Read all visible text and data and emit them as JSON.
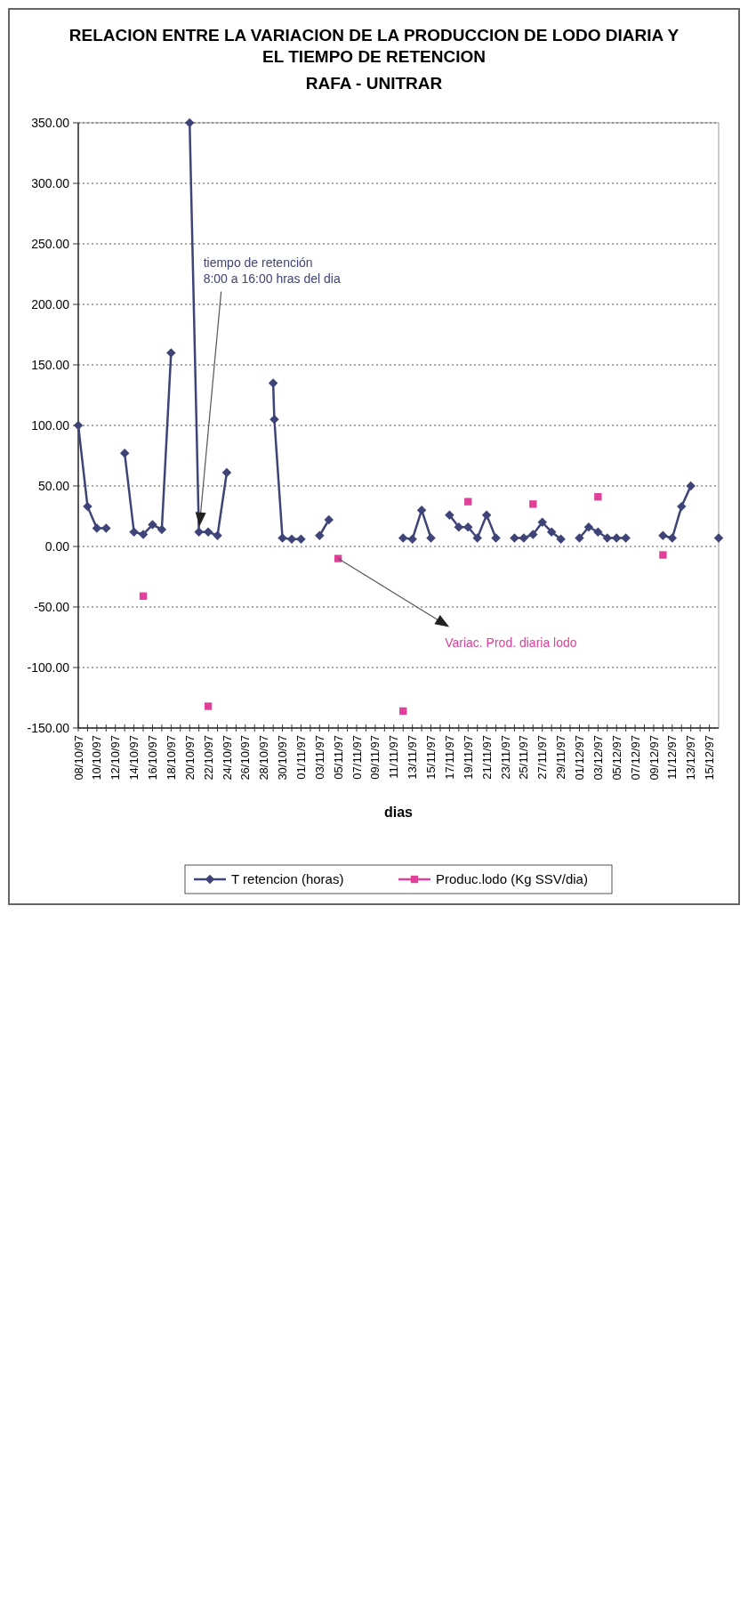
{
  "chart_data": {
    "type": "line",
    "title": "RELACION ENTRE LA VARIACION DE LA PRODUCCION DE LODO DIARIA Y EL TIEMPO DE RETENCION",
    "subtitle": "RAFA - UNITRAR",
    "xlabel": "dias",
    "xlim": [
      "1997-10-08",
      "1997-12-16"
    ],
    "xticks": [
      {
        "value": "1997-10-08",
        "label": "08/10/97"
      },
      {
        "value": "1997-10-09",
        "label": null
      },
      {
        "value": "1997-10-10",
        "label": "10/10/97"
      },
      {
        "value": "1997-10-11",
        "label": null
      },
      {
        "value": "1997-10-12",
        "label": "12/10/97"
      },
      {
        "value": "1997-10-13",
        "label": null
      },
      {
        "value": "1997-10-14",
        "label": "14/10/97"
      },
      {
        "value": "1997-10-15",
        "label": null
      },
      {
        "value": "1997-10-16",
        "label": "16/10/97"
      },
      {
        "value": "1997-10-17",
        "label": null
      },
      {
        "value": "1997-10-18",
        "label": "18/10/97"
      },
      {
        "value": "1997-10-19",
        "label": null
      },
      {
        "value": "1997-10-20",
        "label": "20/10/97"
      },
      {
        "value": "1997-10-21",
        "label": null
      },
      {
        "value": "1997-10-22",
        "label": "22/10/97"
      },
      {
        "value": "1997-10-23",
        "label": null
      },
      {
        "value": "1997-10-24",
        "label": "24/10/97"
      },
      {
        "value": "1997-10-25",
        "label": null
      },
      {
        "value": "1997-10-26",
        "label": "26/10/97"
      },
      {
        "value": "1997-10-27",
        "label": null
      },
      {
        "value": "1997-10-28",
        "label": "28/10/97"
      },
      {
        "value": "1997-10-29",
        "label": null
      },
      {
        "value": "1997-10-30",
        "label": "30/10/97"
      },
      {
        "value": "1997-10-31",
        "label": null
      },
      {
        "value": "1997-11-01",
        "label": "01/11/97"
      },
      {
        "value": "1997-11-02",
        "label": null
      },
      {
        "value": "1997-11-03",
        "label": "03/11/97"
      },
      {
        "value": "1997-11-04",
        "label": null
      },
      {
        "value": "1997-11-05",
        "label": "05/11/97"
      },
      {
        "value": "1997-11-06",
        "label": null
      },
      {
        "value": "1997-11-07",
        "label": "07/11/97"
      },
      {
        "value": "1997-11-08",
        "label": null
      },
      {
        "value": "1997-11-09",
        "label": "09/11/97"
      },
      {
        "value": "1997-11-10",
        "label": null
      },
      {
        "value": "1997-11-11",
        "label": "11/11/97"
      },
      {
        "value": "1997-11-12",
        "label": null
      },
      {
        "value": "1997-11-13",
        "label": "13/11/97"
      },
      {
        "value": "1997-11-14",
        "label": null
      },
      {
        "value": "1997-11-15",
        "label": "15/11/97"
      },
      {
        "value": "1997-11-16",
        "label": null
      },
      {
        "value": "1997-11-17",
        "label": "17/11/97"
      },
      {
        "value": "1997-11-18",
        "label": null
      },
      {
        "value": "1997-11-19",
        "label": "19/11/97"
      },
      {
        "value": "1997-11-20",
        "label": null
      },
      {
        "value": "1997-11-21",
        "label": "21/11/97"
      },
      {
        "value": "1997-11-22",
        "label": null
      },
      {
        "value": "1997-11-23",
        "label": "23/11/97"
      },
      {
        "value": "1997-11-24",
        "label": null
      },
      {
        "value": "1997-11-25",
        "label": "25/11/97"
      },
      {
        "value": "1997-11-26",
        "label": null
      },
      {
        "value": "1997-11-27",
        "label": "27/11/97"
      },
      {
        "value": "1997-11-28",
        "label": null
      },
      {
        "value": "1997-11-29",
        "label": "29/11/97"
      },
      {
        "value": "1997-11-30",
        "label": null
      },
      {
        "value": "1997-12-01",
        "label": "01/12/97"
      },
      {
        "value": "1997-12-02",
        "label": null
      },
      {
        "value": "1997-12-03",
        "label": "03/12/97"
      },
      {
        "value": "1997-12-04",
        "label": null
      },
      {
        "value": "1997-12-05",
        "label": "05/12/97"
      },
      {
        "value": "1997-12-06",
        "label": null
      },
      {
        "value": "1997-12-07",
        "label": "07/12/97"
      },
      {
        "value": "1997-12-08",
        "label": null
      },
      {
        "value": "1997-12-09",
        "label": "09/12/97"
      },
      {
        "value": "1997-12-10",
        "label": null
      },
      {
        "value": "1997-12-11",
        "label": "11/12/97"
      },
      {
        "value": "1997-12-12",
        "label": null
      },
      {
        "value": "1997-12-13",
        "label": "13/12/97"
      },
      {
        "value": "1997-12-14",
        "label": null
      },
      {
        "value": "1997-12-15",
        "label": "15/12/97"
      }
    ],
    "ylim": [
      -150,
      350
    ],
    "yticks": [
      {
        "value": -150,
        "label": "-150.00"
      },
      {
        "value": -100,
        "label": "-100.00"
      },
      {
        "value": -50,
        "label": "-50.00"
      },
      {
        "value": 0,
        "label": "0.00"
      },
      {
        "value": 50,
        "label": "50.00"
      },
      {
        "value": 100,
        "label": "100.00"
      },
      {
        "value": 150,
        "label": "150.00"
      },
      {
        "value": 200,
        "label": "200.00"
      },
      {
        "value": 250,
        "label": "250.00"
      },
      {
        "value": 300,
        "label": "300.00"
      },
      {
        "value": 350,
        "label": "350.00"
      }
    ],
    "grid": "y",
    "legend": "bottom",
    "line_style": "solid",
    "series": [
      {
        "name": "T retencion (horas)",
        "color": "#3f4478",
        "marker": "diamond",
        "x": [
          "1997-10-08",
          "1997-10-09",
          "1997-10-10",
          "1997-10-11",
          "1997-10-12",
          "1997-10-13",
          "1997-10-14",
          "1997-10-15",
          "1997-10-16",
          "1997-10-17",
          "1997-10-18",
          "1997-10-19",
          "1997-10-20",
          "1997-10-21",
          "1997-10-22",
          "1997-10-23",
          "1997-10-24",
          "1997-10-25",
          "1997-10-29",
          "1997-10-29T03:00",
          "1997-10-30",
          "1997-10-31",
          "1997-11-01",
          "1997-11-02",
          "1997-11-03",
          "1997-11-04",
          "1997-11-05",
          "1997-11-12",
          "1997-11-13",
          "1997-11-14",
          "1997-11-15",
          "1997-11-16",
          "1997-11-17",
          "1997-11-18",
          "1997-11-19",
          "1997-11-20",
          "1997-11-21",
          "1997-11-22",
          "1997-11-23",
          "1997-11-24",
          "1997-11-25",
          "1997-11-26",
          "1997-11-27",
          "1997-11-28",
          "1997-11-29",
          "1997-11-30",
          "1997-12-01",
          "1997-12-02",
          "1997-12-03",
          "1997-12-04",
          "1997-12-05",
          "1997-12-06",
          "1997-12-07",
          "1997-12-10",
          "1997-12-11",
          "1997-12-12",
          "1997-12-13",
          "1997-12-14",
          "1997-12-16"
        ],
        "values": [
          100,
          33,
          15,
          15,
          null,
          77,
          12,
          10,
          18,
          14,
          160,
          null,
          350,
          12,
          12,
          9,
          61,
          null,
          135,
          105,
          7,
          6,
          6,
          null,
          9,
          22,
          null,
          7,
          6,
          30,
          7,
          null,
          26,
          16,
          16,
          7,
          26,
          7,
          null,
          7,
          7,
          10,
          20,
          12,
          6,
          null,
          7,
          16,
          12,
          7,
          7,
          7,
          null,
          9,
          7,
          33,
          50,
          null,
          7
        ]
      },
      {
        "name": "Produc.lodo (Kg SSV/dia)",
        "type": "scatter",
        "color": "#e0409a",
        "marker": "square",
        "x": [
          "1997-10-15",
          "1997-10-22",
          "1997-11-05",
          "1997-11-12",
          "1997-11-19",
          "1997-11-26",
          "1997-12-03",
          "1997-12-10"
        ],
        "values": [
          -41,
          -132,
          -10,
          -136,
          37,
          35,
          41,
          -7
        ]
      }
    ],
    "annotations": [
      {
        "text": "tiempo de retención\n8:00 a 16:00 hras del dia",
        "x": "1997-10-21",
        "y": 12
      },
      {
        "text": "Variac. Prod. diaria lodo",
        "x": "1997-11-05",
        "y": -10
      }
    ]
  }
}
